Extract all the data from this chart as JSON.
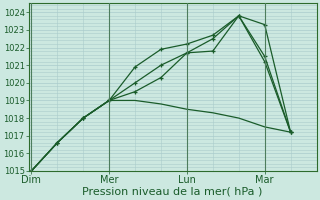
{
  "background_color": "#cce8e0",
  "grid_color": "#aacccc",
  "line_color": "#1a5c2a",
  "xlabel": "Pression niveau de la mer( hPa )",
  "xlabel_fontsize": 8,
  "ylim": [
    1015,
    1024.5
  ],
  "yticks": [
    1015,
    1016,
    1017,
    1018,
    1019,
    1020,
    1021,
    1022,
    1023,
    1024
  ],
  "ytick_fontsize": 6,
  "xtick_fontsize": 7,
  "xtick_labels": [
    "Dim",
    "Mer",
    "Lun",
    "Mar"
  ],
  "xtick_positions": [
    0,
    3,
    6,
    9
  ],
  "xlim_left": -0.1,
  "xlim_right": 11.0,
  "series": [
    {
      "x": [
        0,
        1,
        2,
        3,
        4,
        5,
        6,
        7,
        8,
        9,
        10
      ],
      "y": [
        1015.0,
        1016.6,
        1018.0,
        1019.0,
        1020.9,
        1021.9,
        1022.2,
        1022.7,
        1023.8,
        1021.2,
        1017.2
      ],
      "has_markers": true
    },
    {
      "x": [
        0,
        1,
        2,
        3,
        4,
        5,
        6,
        7,
        8,
        9,
        10
      ],
      "y": [
        1015.0,
        1016.6,
        1018.0,
        1019.0,
        1019.0,
        1018.8,
        1018.5,
        1018.3,
        1018.0,
        1017.5,
        1017.2
      ],
      "has_markers": false
    },
    {
      "x": [
        0,
        1,
        2,
        3,
        4,
        5,
        6,
        7,
        8,
        9,
        10
      ],
      "y": [
        1015.0,
        1016.6,
        1018.0,
        1019.0,
        1020.0,
        1021.0,
        1021.7,
        1022.5,
        1023.8,
        1023.3,
        1017.2
      ],
      "has_markers": true
    },
    {
      "x": [
        0,
        1,
        2,
        3,
        4,
        5,
        6,
        7,
        8,
        9,
        10
      ],
      "y": [
        1015.0,
        1016.6,
        1018.0,
        1019.0,
        1019.5,
        1020.3,
        1021.7,
        1021.8,
        1023.8,
        1021.5,
        1017.2
      ],
      "has_markers": true
    }
  ],
  "axis_spine_color": "#2d6b2d",
  "vline_color": "#4d7d5d",
  "vline_positions": [
    0,
    3,
    6,
    9
  ]
}
